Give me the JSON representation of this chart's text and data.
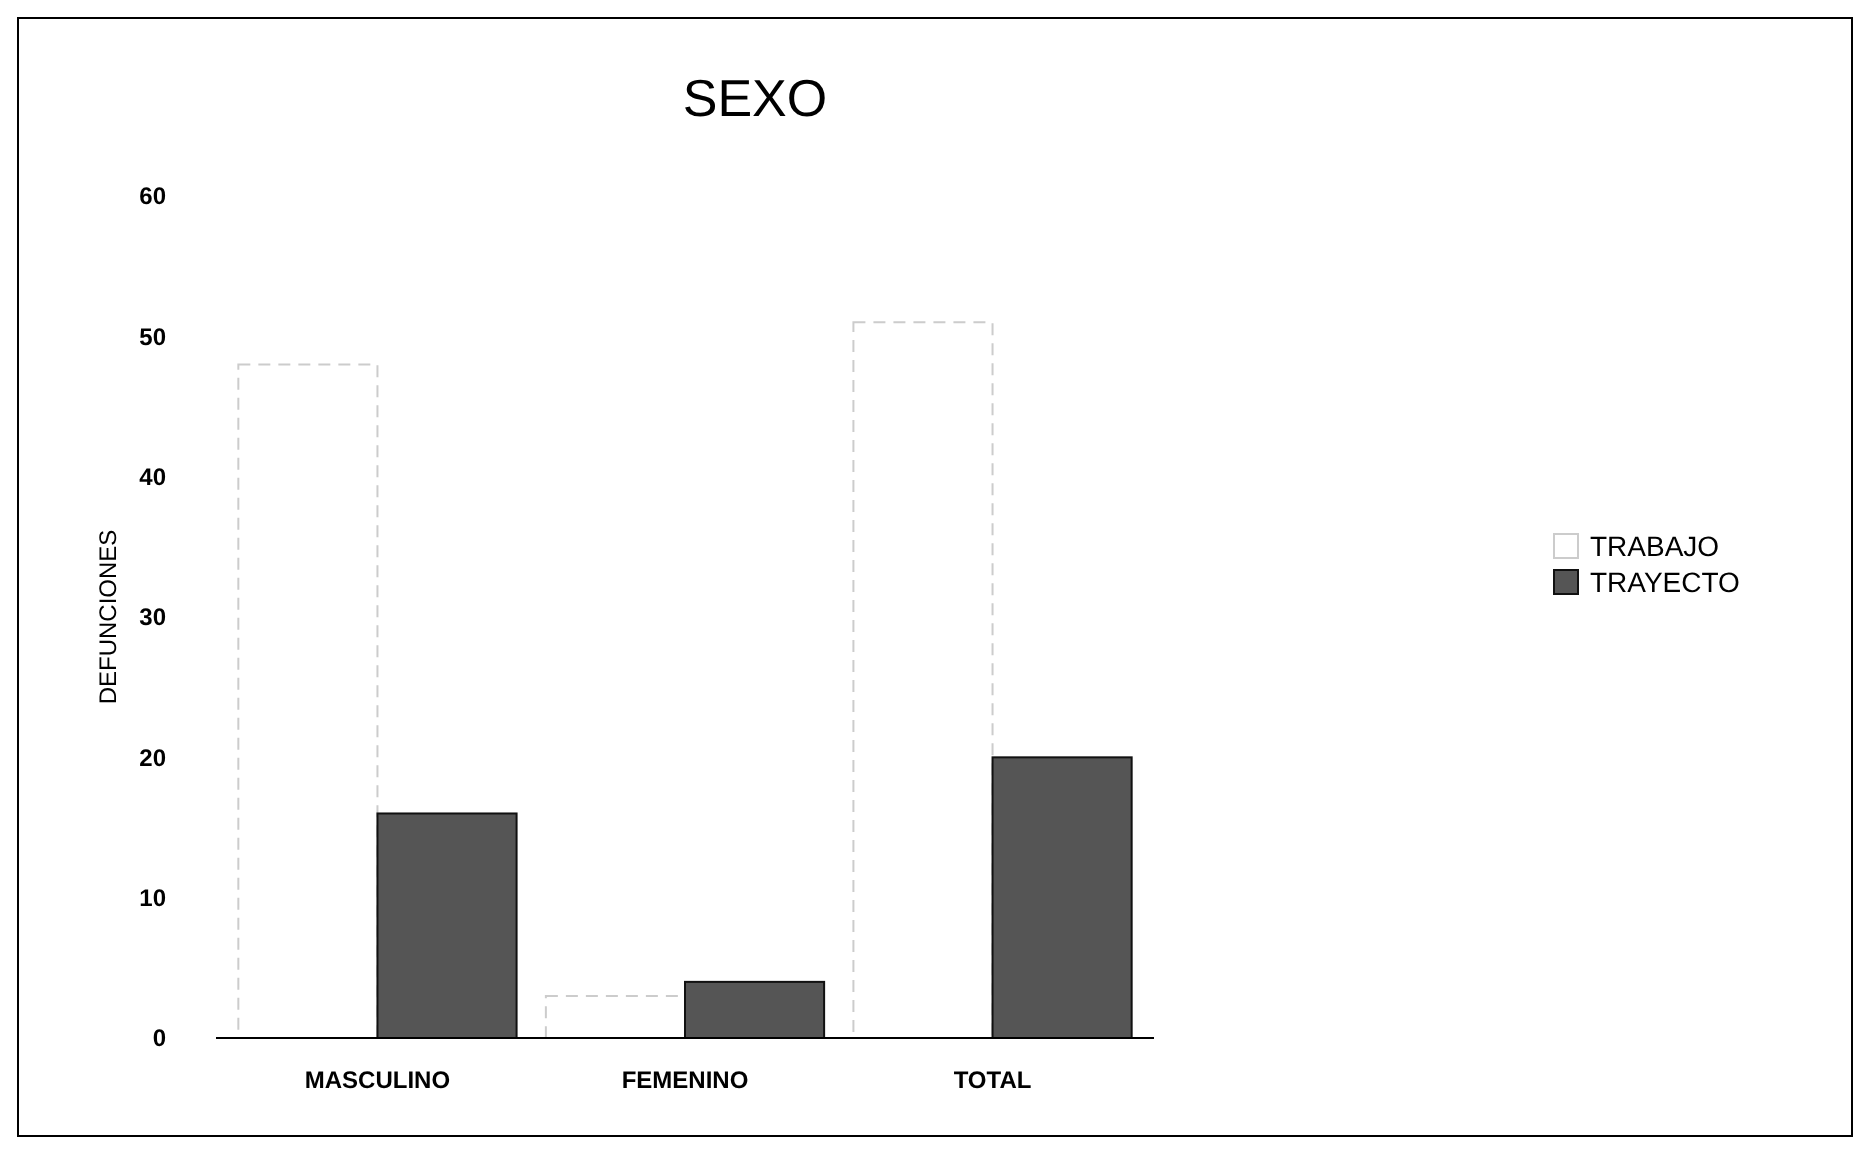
{
  "chart_data": {
    "type": "bar",
    "title": "SEXO",
    "ylabel": "DEFUNCIONES",
    "categories": [
      "MASCULINO",
      "FEMENINO",
      "TOTAL"
    ],
    "series": [
      {
        "name": "TRABAJO",
        "color": "#ffffff",
        "values": [
          48,
          3,
          51
        ]
      },
      {
        "name": "TRAYECTO",
        "color": "#555555",
        "values": [
          16,
          4,
          20
        ]
      }
    ],
    "ylim": [
      0,
      60
    ],
    "yticks": [
      0,
      10,
      20,
      30,
      40,
      50,
      60
    ],
    "grid": false,
    "legend": "right"
  }
}
